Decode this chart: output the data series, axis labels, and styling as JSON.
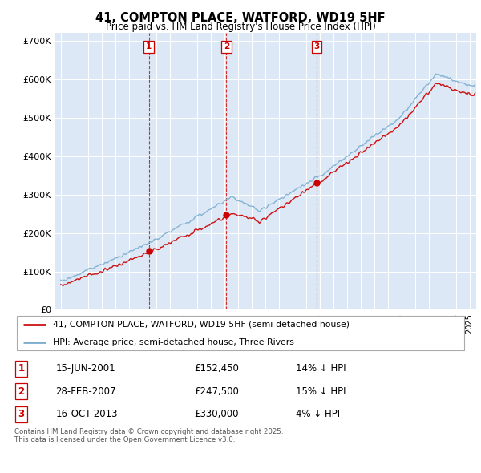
{
  "title": "41, COMPTON PLACE, WATFORD, WD19 5HF",
  "subtitle": "Price paid vs. HM Land Registry's House Price Index (HPI)",
  "legend_entries": [
    "41, COMPTON PLACE, WATFORD, WD19 5HF (semi-detached house)",
    "HPI: Average price, semi-detached house, Three Rivers"
  ],
  "transactions": [
    {
      "num": 1,
      "date": "15-JUN-2001",
      "price": 152450,
      "pct": "14%",
      "dir": "↓"
    },
    {
      "num": 2,
      "date": "28-FEB-2007",
      "price": 247500,
      "pct": "15%",
      "dir": "↓"
    },
    {
      "num": 3,
      "date": "16-OCT-2013",
      "price": 330000,
      "pct": "4%",
      "dir": "↓"
    }
  ],
  "transaction_years": [
    2001.46,
    2007.16,
    2013.79
  ],
  "transaction_prices": [
    152450,
    247500,
    330000
  ],
  "vline_color": "#cc0000",
  "red_line_color": "#cc1111",
  "blue_line_color": "#7aadcf",
  "footer": "Contains HM Land Registry data © Crown copyright and database right 2025.\nThis data is licensed under the Open Government Licence v3.0.",
  "ylim": [
    0,
    720000
  ],
  "yticks": [
    0,
    100000,
    200000,
    300000,
    400000,
    500000,
    600000,
    700000
  ],
  "background_color": "#ffffff",
  "plot_bg_color": "#dce8f5"
}
